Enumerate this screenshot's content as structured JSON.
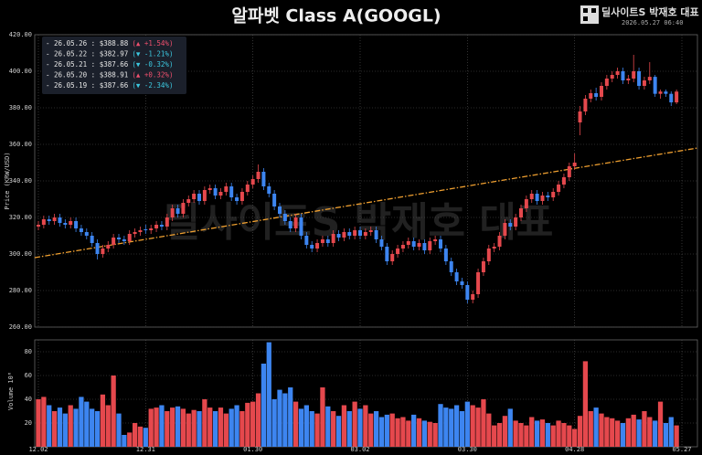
{
  "title": "알파벳 Class A(GOOGL)",
  "watermark": {
    "brand": "딜사이트S 박재호 대표",
    "timestamp": "2026.05.27 06:40"
  },
  "chart_data": [
    {
      "type": "candlestick",
      "categories": [
        "12.02",
        null,
        null,
        null,
        null,
        null,
        null,
        null,
        null,
        null,
        null,
        null,
        null,
        null,
        null,
        null,
        null,
        null,
        null,
        null,
        "12.31",
        null,
        null,
        null,
        null,
        null,
        null,
        null,
        null,
        null,
        null,
        null,
        null,
        null,
        null,
        null,
        null,
        null,
        null,
        null,
        "01.30",
        null,
        null,
        null,
        null,
        null,
        null,
        null,
        null,
        null,
        null,
        null,
        null,
        null,
        null,
        null,
        null,
        null,
        null,
        null,
        "03.02",
        null,
        null,
        null,
        null,
        null,
        null,
        null,
        null,
        null,
        null,
        null,
        null,
        null,
        null,
        null,
        null,
        null,
        null,
        null,
        "03.30",
        null,
        null,
        null,
        null,
        null,
        null,
        null,
        null,
        null,
        null,
        null,
        null,
        null,
        null,
        null,
        null,
        null,
        null,
        null,
        "04.28",
        null,
        null,
        null,
        null,
        null,
        null,
        null,
        null,
        null,
        null,
        null,
        null,
        null,
        null,
        null,
        null,
        null,
        null,
        null,
        "05.27"
      ],
      "open": [
        315,
        316,
        319,
        318,
        320,
        317,
        316,
        318,
        314,
        312,
        310,
        306,
        300,
        303,
        305,
        309,
        308,
        307,
        311,
        312,
        313.5,
        313,
        314,
        316,
        315,
        320,
        325,
        322,
        328,
        330,
        333,
        329,
        335,
        336,
        332,
        334,
        337,
        331,
        329,
        334,
        338,
        341,
        345,
        337,
        333,
        326,
        322,
        318,
        314,
        320,
        310,
        305,
        303,
        306,
        308,
        306,
        311,
        309,
        312,
        310,
        313,
        310,
        312,
        313,
        308,
        304,
        296,
        300,
        303,
        305,
        307,
        304,
        306,
        302,
        307,
        308,
        303,
        296,
        290,
        285,
        283,
        275,
        278,
        290,
        296,
        303,
        304,
        310,
        317,
        315,
        320,
        325,
        330,
        333,
        329,
        332,
        331,
        334,
        338,
        342,
        348,
        372,
        378,
        385,
        388,
        386,
        392,
        396,
        398,
        400,
        395,
        396,
        400,
        392,
        395,
        396.95,
        387.66,
        388.91,
        387.66,
        382.97,
        null
      ],
      "high": [
        318,
        321,
        321,
        322,
        322,
        319,
        320,
        320,
        316,
        314,
        312,
        308,
        305,
        307,
        311,
        311,
        310,
        313,
        314,
        315,
        316,
        316,
        318,
        318,
        322,
        327,
        327,
        330,
        332,
        335,
        335,
        337,
        338,
        338,
        336,
        339,
        339,
        333,
        336,
        340,
        343,
        349,
        347,
        339,
        335,
        328,
        324,
        320,
        322,
        322,
        312,
        307,
        308,
        310,
        310,
        313,
        313,
        314,
        314,
        315,
        315,
        314,
        315,
        315,
        310,
        306,
        302,
        305,
        307,
        309,
        309,
        308,
        308,
        309,
        310,
        310,
        305,
        298,
        292,
        287,
        285,
        280,
        292,
        298,
        305,
        306,
        312,
        319,
        319,
        322,
        327,
        332,
        335,
        335,
        334,
        334,
        336,
        340,
        344,
        350,
        355,
        381,
        387,
        390,
        391,
        394,
        398,
        400,
        402,
        402,
        398,
        409,
        402,
        397,
        405,
        398,
        390,
        390,
        389,
        390,
        null
      ],
      "low": [
        313,
        314,
        316,
        316,
        315,
        314,
        314,
        312,
        310,
        308,
        304,
        297,
        298,
        301,
        303,
        306,
        305,
        305,
        309,
        310,
        311,
        311,
        312,
        313,
        313,
        318,
        320,
        320,
        326,
        328,
        327,
        327,
        333,
        330,
        330,
        332,
        329,
        327,
        327,
        332,
        336,
        339,
        335,
        331,
        324,
        320,
        316,
        312,
        312,
        308,
        303,
        301,
        301,
        304,
        304,
        304,
        307,
        307,
        308,
        308,
        308,
        308,
        310,
        306,
        302,
        294,
        294,
        298,
        301,
        303,
        302,
        302,
        300,
        300,
        305,
        301,
        294,
        288,
        283,
        281,
        273,
        273,
        276,
        288,
        294,
        301,
        302,
        308,
        313,
        313,
        318,
        323,
        328,
        327,
        327,
        329,
        329,
        332,
        336,
        340,
        346,
        365,
        376,
        383,
        384,
        384,
        390,
        394,
        396,
        393,
        393,
        394,
        390,
        390,
        393,
        386,
        385,
        386,
        381,
        382,
        null
      ],
      "close": [
        316,
        319,
        318,
        320,
        317,
        316,
        318,
        314,
        312,
        310,
        306,
        300,
        303,
        305,
        309,
        308,
        307,
        311,
        312,
        313,
        313,
        314,
        316,
        315,
        320,
        325,
        322,
        328,
        330,
        333,
        329,
        335,
        336,
        332,
        334,
        337,
        331,
        329,
        334,
        338,
        341,
        345,
        337,
        333,
        326,
        322,
        318,
        314,
        320,
        310,
        305,
        303,
        306,
        308,
        306,
        311,
        309,
        312,
        310,
        313,
        310,
        312,
        313,
        308,
        304,
        296,
        300,
        303,
        305,
        307,
        304,
        306,
        302,
        307,
        308,
        303,
        296,
        290,
        285,
        283,
        275,
        278,
        290,
        296,
        303,
        304,
        310,
        317,
        315,
        320,
        325,
        330,
        333,
        329,
        332,
        331,
        334,
        338,
        342,
        348,
        350,
        378,
        385,
        388,
        386,
        392,
        396,
        398,
        400,
        395,
        396,
        400,
        392,
        395,
        396.95,
        387.66,
        388.91,
        387.66,
        382.97,
        388.88,
        null
      ],
      "up_color": "#e5484d",
      "down_color": "#3d85f0",
      "ylim": [
        260,
        420
      ],
      "yticks": [
        {
          "value": 260,
          "label": "260.00"
        },
        {
          "value": 280,
          "label": "280.00"
        },
        {
          "value": 300,
          "label": "300.00"
        },
        {
          "value": 320,
          "label": "320.00"
        },
        {
          "value": 340,
          "label": "340.00"
        },
        {
          "value": 360,
          "label": "360.00"
        },
        {
          "value": 380,
          "label": "380.00"
        },
        {
          "value": 400,
          "label": "400.00"
        },
        {
          "value": 420,
          "label": "420.00"
        }
      ],
      "ylabel": "Price (KRW/USD)",
      "grid": true,
      "trend_line": {
        "start": 298,
        "end": 358,
        "color": "#f0a030"
      },
      "legend": [
        {
          "label": "- 26.05.26 : $388.88",
          "change": "(▲ +1.54%)",
          "direction": "up"
        },
        {
          "label": "- 26.05.22 : $382.97",
          "change": "(▼ -1.21%)",
          "direction": "down"
        },
        {
          "label": "- 26.05.21 : $387.66",
          "change": "(▼ -0.32%)",
          "direction": "down"
        },
        {
          "label": "- 26.05.20 : $388.91",
          "change": "(▲ +0.32%)",
          "direction": "up"
        },
        {
          "label": "- 26.05.19 : $387.66",
          "change": "(▼ -2.34%)",
          "direction": "down"
        }
      ]
    },
    {
      "type": "volume",
      "values": [
        40,
        42,
        35,
        30,
        33,
        28,
        35,
        32,
        42,
        38,
        32,
        30,
        44,
        35,
        60,
        28,
        10,
        12,
        20,
        17,
        16,
        32,
        33,
        35,
        30,
        33,
        34,
        32,
        28,
        31,
        30,
        40,
        33,
        30,
        33,
        28,
        32,
        35,
        30,
        37,
        38,
        45,
        70,
        88,
        40,
        48,
        45,
        50,
        38,
        32,
        35,
        30,
        28,
        50,
        34,
        30,
        26,
        35,
        30,
        38,
        32,
        35,
        28,
        30,
        25,
        27,
        28,
        24,
        25,
        22,
        27,
        24,
        22,
        21,
        20,
        36,
        33,
        32,
        35,
        30,
        38,
        35,
        33,
        40,
        28,
        18,
        20,
        26,
        32,
        22,
        20,
        18,
        25,
        22,
        23,
        20,
        18,
        22,
        20,
        18,
        15,
        26,
        72,
        30,
        33,
        28,
        25,
        24,
        22,
        20,
        24,
        27,
        23,
        30,
        25,
        22,
        38,
        20,
        25,
        18,
        null
      ],
      "ylim": [
        0,
        90
      ],
      "yticks": [
        20,
        40,
        60,
        80
      ],
      "ylabel": "Volume 10⁶",
      "grid": true
    }
  ]
}
